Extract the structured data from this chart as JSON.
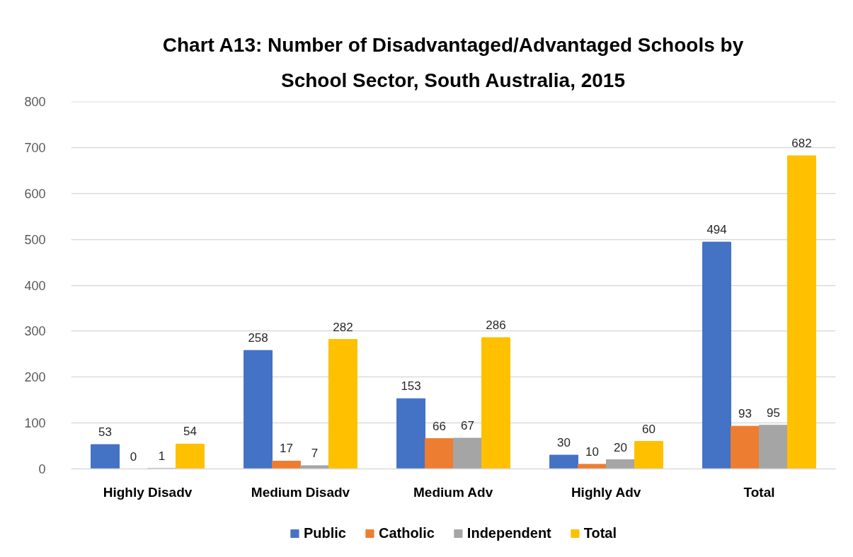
{
  "chart_data": {
    "type": "bar",
    "title": "Chart A13: Number of Disadvantaged/Advantaged Schools by School Sector, South Australia, 2015",
    "categories": [
      "Highly Disadv",
      "Medium Disadv",
      "Medium Adv",
      "Highly Adv",
      "Total"
    ],
    "series": [
      {
        "name": "Public",
        "color": "#4472c4",
        "values": [
          53,
          258,
          153,
          30,
          494
        ]
      },
      {
        "name": "Catholic",
        "color": "#ed7d31",
        "values": [
          0,
          17,
          66,
          10,
          93
        ]
      },
      {
        "name": "Independent",
        "color": "#a5a5a5",
        "values": [
          1,
          7,
          67,
          20,
          95
        ]
      },
      {
        "name": "Total",
        "color": "#ffc000",
        "values": [
          54,
          282,
          286,
          60,
          682
        ]
      }
    ],
    "ylim": [
      0,
      800
    ],
    "yticks": [
      0,
      100,
      200,
      300,
      400,
      500,
      600,
      700,
      800
    ],
    "grid": "y",
    "legend": "bottom",
    "data_labels": true
  }
}
